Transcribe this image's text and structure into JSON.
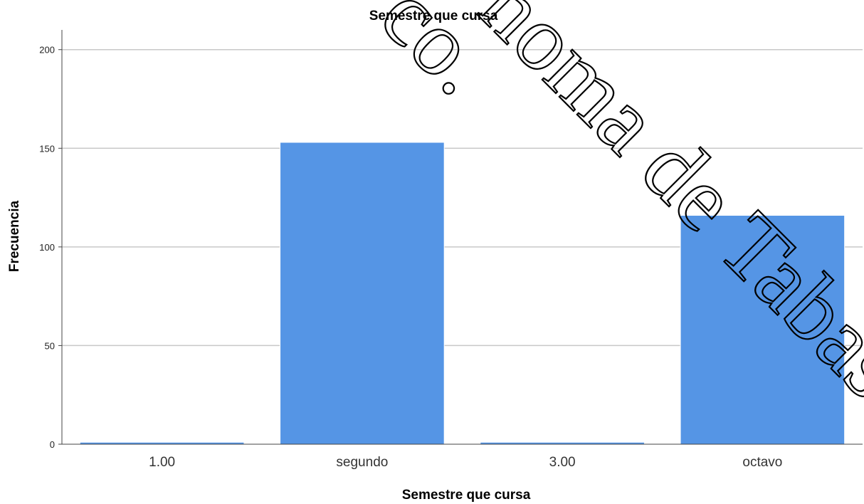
{
  "chart_data": {
    "type": "bar",
    "title": "Semestre que cursa",
    "xlabel": "Semestre que cursa",
    "ylabel": "Frecuencia",
    "categories": [
      "1.00",
      "segundo",
      "3.00",
      "octavo"
    ],
    "values": [
      1,
      153,
      1,
      116
    ],
    "ylim": [
      0,
      210
    ],
    "yticks": [
      0,
      50,
      100,
      150,
      200
    ],
    "grid": true,
    "legend": "none",
    "bar_color": "#5595e5",
    "bar_edge_color": "#ffffff"
  },
  "watermark": {
    "fragment_left": "co.",
    "fragment_right": "noma de Tabasco"
  }
}
